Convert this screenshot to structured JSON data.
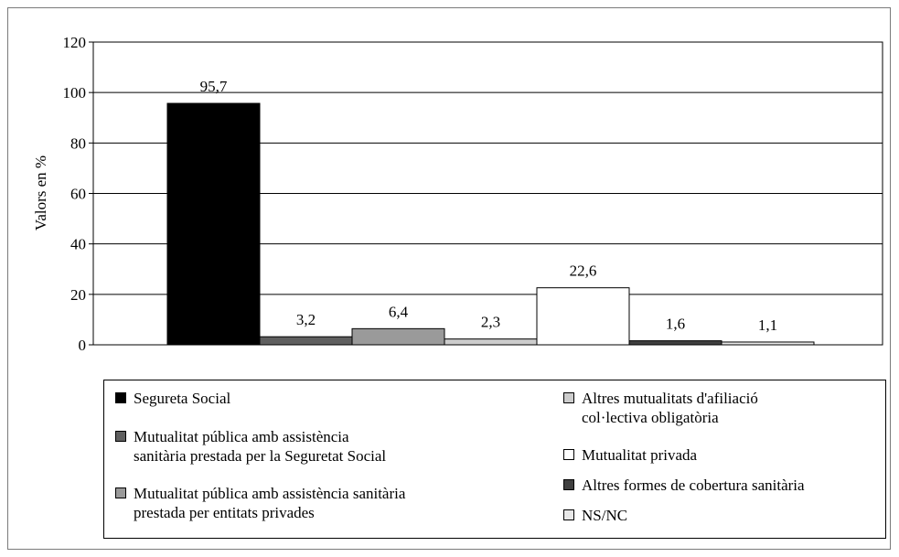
{
  "chart_data": {
    "type": "bar",
    "ylabel": "Valors en %",
    "ylim": [
      0,
      120
    ],
    "yticks": [
      0,
      20,
      40,
      60,
      80,
      100,
      120
    ],
    "grid": true,
    "legend_position": "bottom",
    "series": [
      {
        "name": "Segureta Social",
        "value": 95.7,
        "label": "95,7",
        "color": "#000000"
      },
      {
        "name": "Mutualitat pública amb assistència\nsanitària prestada per la Seguretat Social",
        "value": 3.2,
        "label": "3,2",
        "color": "#5f5f5f"
      },
      {
        "name": "Mutualitat pública amb assistència sanitària\nprestada per entitats privades",
        "value": 6.4,
        "label": "6,4",
        "color": "#9a9a9a"
      },
      {
        "name": "Altres mutualitats d'afiliació\ncol·lectiva obligatòria",
        "value": 2.3,
        "label": "2,3",
        "color": "#cccccc"
      },
      {
        "name": "Mutualitat privada",
        "value": 22.6,
        "label": "22,6",
        "color": "#ffffff"
      },
      {
        "name": "Altres formes de cobertura sanitària",
        "value": 1.6,
        "label": "1,6",
        "color": "#3f3f3f"
      },
      {
        "name": "NS/NC",
        "value": 1.1,
        "label": "1,1",
        "color": "#e8e8e8"
      }
    ]
  }
}
